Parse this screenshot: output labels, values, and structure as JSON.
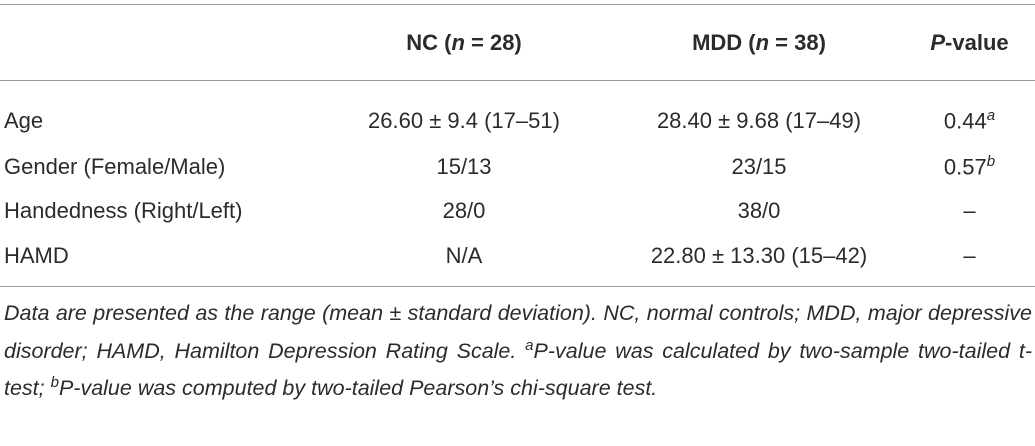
{
  "table": {
    "header": [
      [
        "NC (",
        "n",
        " = 28)"
      ],
      [
        "MDD (",
        "n",
        " = 38)"
      ],
      [
        "P",
        "-value"
      ]
    ],
    "rows": [
      [
        "Age",
        "26.60 ± 9.4 (17–51)",
        "28.40 ± 9.68 (17–49)",
        {
          "text": "0.44",
          "sup": "a"
        }
      ],
      [
        "Gender (Female/Male)",
        "15/13",
        "23/15",
        {
          "text": "0.57",
          "sup": "b"
        }
      ],
      [
        "Handedness (Right/Left)",
        "28/0",
        "38/0",
        {
          "text": "–"
        }
      ],
      [
        "HAMD",
        "N/A",
        "22.80 ± 13.30 (15–42)",
        {
          "text": "–"
        }
      ]
    ]
  },
  "footnote": [
    "Data are presented as the range (mean ± standard deviation). NC, normal controls; MDD, major depressive disorder; HAMD, Hamilton Depression Rating Scale. ",
    "a",
    "P-value was calculated by two-sample two-tailed t-test; ",
    "b",
    "P-value was computed by two-tailed Pearson’s chi-square test."
  ]
}
